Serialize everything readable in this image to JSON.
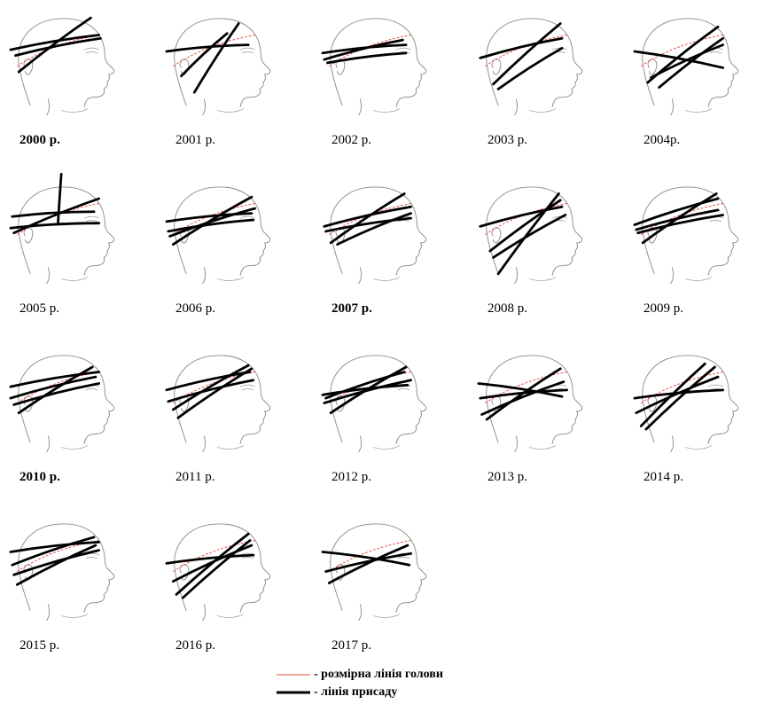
{
  "figure": {
    "panels": [
      {
        "caption": "2000 р.",
        "bold": true,
        "lines": [
          [
            -4,
            40,
            104,
            22
          ],
          [
            6,
            67,
            94,
            1
          ],
          [
            2,
            47,
            106,
            26
          ]
        ]
      },
      {
        "caption": "2001 р.",
        "bold": false,
        "lines": [
          [
            -4,
            42,
            96,
            34
          ],
          [
            30,
            92,
            84,
            8
          ],
          [
            14,
            72,
            70,
            20
          ]
        ]
      },
      {
        "caption": "2002 р.",
        "bold": false,
        "lines": [
          [
            -4,
            44,
            98,
            34
          ],
          [
            2,
            56,
            98,
            44
          ],
          [
            -2,
            52,
            94,
            28
          ]
        ]
      },
      {
        "caption": "2003 р.",
        "bold": false,
        "lines": [
          [
            -2,
            50,
            98,
            26
          ],
          [
            14,
            82,
            96,
            8
          ],
          [
            20,
            88,
            98,
            38
          ]
        ]
      },
      {
        "caption": "2004р.",
        "bold": false,
        "lines": [
          [
            -4,
            42,
            104,
            62
          ],
          [
            26,
            86,
            104,
            26
          ],
          [
            12,
            80,
            98,
            12
          ],
          [
            16,
            74,
            104,
            34
          ]
        ]
      },
      {
        "caption": "2005 р.",
        "bold": false,
        "lines": [
          [
            -4,
            52,
            104,
            46
          ],
          [
            -2,
            38,
            98,
            32
          ],
          [
            0,
            58,
            104,
            16
          ],
          [
            54,
            46,
            58,
            -14
          ]
        ]
      },
      {
        "caption": "2006 р.",
        "bold": false,
        "lines": [
          [
            -4,
            44,
            100,
            34
          ],
          [
            -2,
            56,
            102,
            42
          ],
          [
            4,
            72,
            100,
            14
          ],
          [
            0,
            62,
            104,
            28
          ]
        ]
      },
      {
        "caption": "2007 р.",
        "bold": true,
        "lines": [
          [
            -2,
            50,
            104,
            26
          ],
          [
            6,
            70,
            96,
            10
          ],
          [
            14,
            72,
            104,
            34
          ],
          [
            0,
            56,
            104,
            40
          ]
        ]
      },
      {
        "caption": "2008 р.",
        "bold": false,
        "lines": [
          [
            -2,
            50,
            98,
            26
          ],
          [
            20,
            108,
            94,
            10
          ],
          [
            10,
            80,
            96,
            18
          ],
          [
            14,
            88,
            102,
            36
          ]
        ]
      },
      {
        "caption": "2009 р.",
        "bold": false,
        "lines": [
          [
            -4,
            48,
            98,
            16
          ],
          [
            6,
            70,
            96,
            10
          ],
          [
            0,
            58,
            104,
            36
          ],
          [
            -2,
            54,
            98,
            30
          ]
        ]
      },
      {
        "caption": "2010 р.",
        "bold": true,
        "lines": [
          [
            -4,
            40,
            104,
            22
          ],
          [
            6,
            72,
            96,
            16
          ],
          [
            0,
            62,
            104,
            36
          ],
          [
            -4,
            54,
            100,
            28
          ]
        ]
      },
      {
        "caption": "2011 р.",
        "bold": false,
        "lines": [
          [
            -4,
            44,
            98,
            22
          ],
          [
            10,
            78,
            100,
            18
          ],
          [
            -2,
            58,
            102,
            32
          ],
          [
            4,
            68,
            96,
            14
          ]
        ]
      },
      {
        "caption": "2012 р.",
        "bold": false,
        "lines": [
          [
            -4,
            50,
            100,
            38
          ],
          [
            6,
            72,
            98,
            16
          ],
          [
            -2,
            60,
            104,
            32
          ],
          [
            0,
            54,
            96,
            22
          ]
        ]
      },
      {
        "caption": "2013 р.",
        "bold": false,
        "lines": [
          [
            -4,
            36,
            98,
            52
          ],
          [
            0,
            74,
            100,
            34
          ],
          [
            -2,
            54,
            104,
            44
          ],
          [
            6,
            80,
            96,
            18
          ]
        ]
      },
      {
        "caption": "2014 р.",
        "bold": false,
        "lines": [
          [
            -4,
            54,
            104,
            44
          ],
          [
            4,
            88,
            82,
            12
          ],
          [
            10,
            92,
            94,
            16
          ],
          [
            -2,
            72,
            98,
            28
          ]
        ]
      },
      {
        "caption": "2015 р.",
        "bold": false,
        "lines": [
          [
            -4,
            36,
            104,
            24
          ],
          [
            4,
            76,
            100,
            28
          ],
          [
            0,
            64,
            104,
            34
          ],
          [
            -2,
            52,
            98,
            18
          ]
        ]
      },
      {
        "caption": "2016 р.",
        "bold": false,
        "lines": [
          [
            -4,
            50,
            102,
            40
          ],
          [
            8,
            88,
            96,
            14
          ],
          [
            16,
            92,
            98,
            22
          ],
          [
            4,
            72,
            100,
            28
          ]
        ]
      },
      {
        "caption": "2017 р.",
        "bold": false,
        "lines": [
          [
            -4,
            36,
            102,
            52
          ],
          [
            4,
            74,
            100,
            28
          ],
          [
            0,
            60,
            104,
            38
          ]
        ]
      }
    ],
    "legend": {
      "size_line_label": "- розмірна лінія голови",
      "fit_line_label": "- лінія присаду",
      "size_line_color": "#e8453c",
      "fit_line_color": "#000000"
    }
  }
}
